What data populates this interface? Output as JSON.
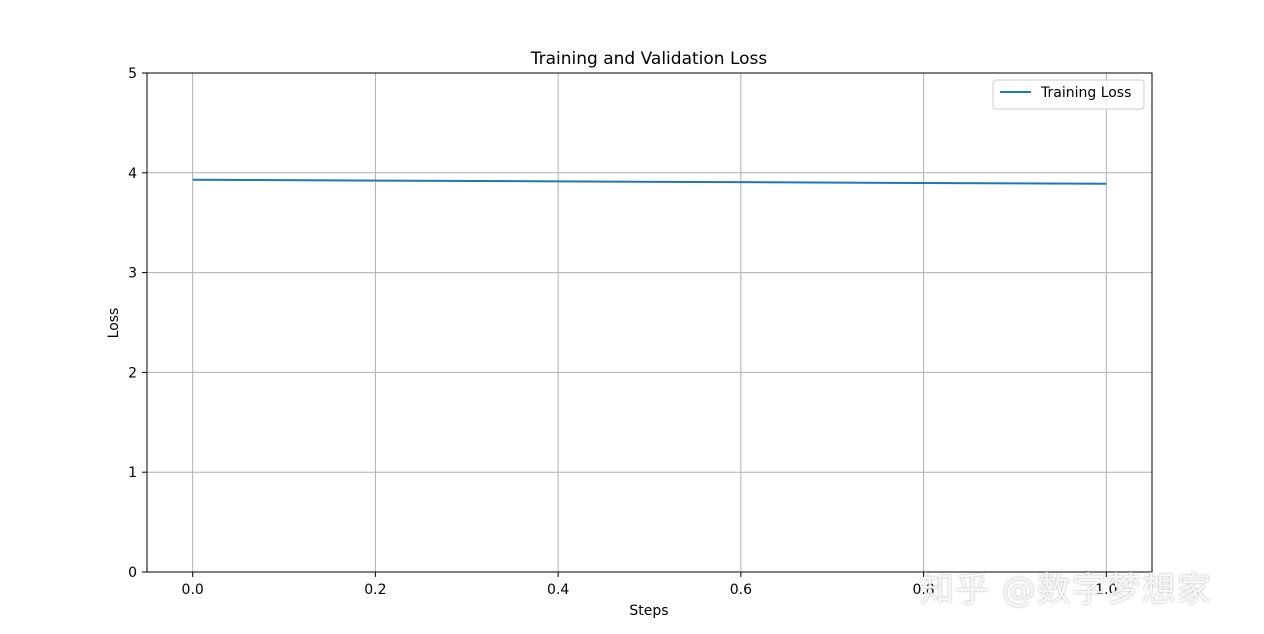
{
  "chart_data": {
    "type": "line",
    "title": "Training and Validation Loss",
    "xlabel": "Steps",
    "ylabel": "Loss",
    "xlim": [
      -0.05,
      1.05
    ],
    "ylim": [
      0,
      5
    ],
    "xticks": [
      0.0,
      0.2,
      0.4,
      0.6,
      0.8,
      1.0
    ],
    "xtick_labels": [
      "0.0",
      "0.2",
      "0.4",
      "0.6",
      "0.8",
      "1.0"
    ],
    "yticks": [
      0,
      1,
      2,
      3,
      4,
      5
    ],
    "ytick_labels": [
      "0",
      "1",
      "2",
      "3",
      "4",
      "5"
    ],
    "grid": true,
    "legend_position": "top-right",
    "series": [
      {
        "name": "Training Loss",
        "color": "#1f77b4",
        "x": [
          0.0,
          1.0
        ],
        "y": [
          3.93,
          3.89
        ]
      }
    ]
  },
  "watermark": "知乎 @数字梦想家"
}
